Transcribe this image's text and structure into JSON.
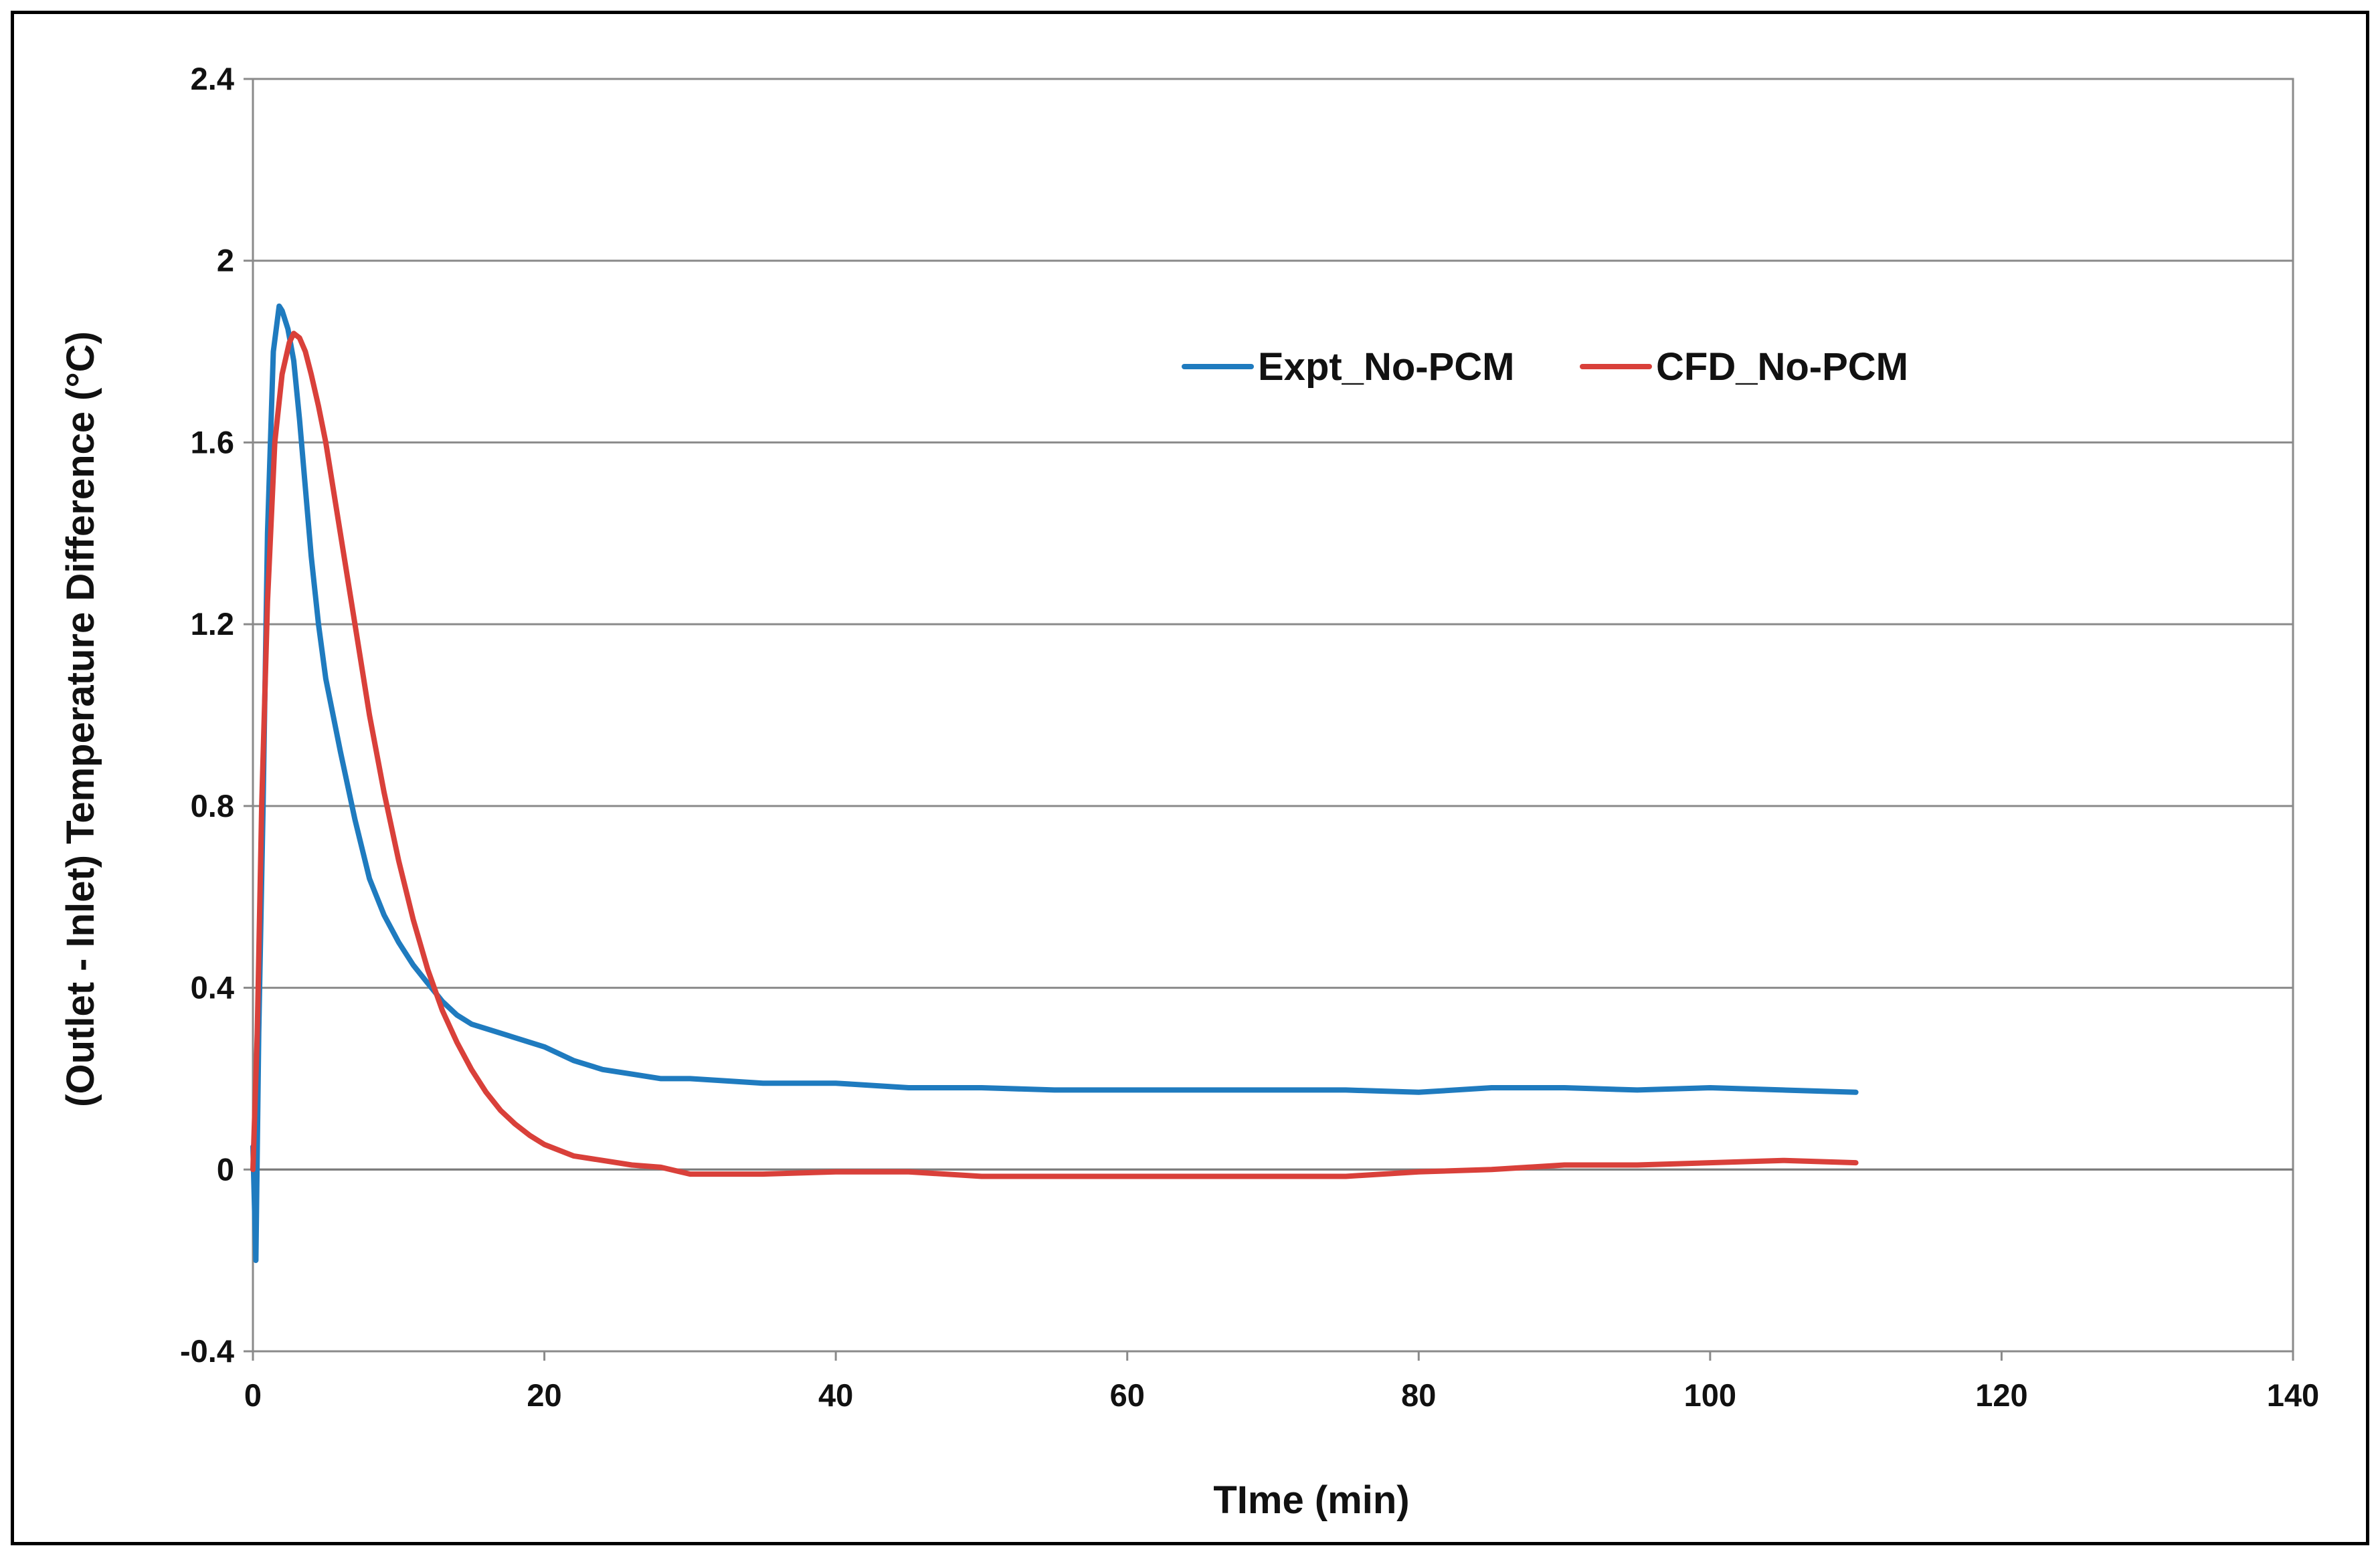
{
  "chart_data": {
    "type": "line",
    "title": "",
    "xlabel": "TIme (min)",
    "ylabel": "(Outlet - Inlet) Temperature Difference (°C)",
    "xlim": [
      0,
      140
    ],
    "ylim": [
      -0.4,
      2.4
    ],
    "x_ticks": [
      0,
      20,
      40,
      60,
      80,
      100,
      120,
      140
    ],
    "y_ticks": [
      -0.4,
      0,
      0.4,
      0.8,
      1.2,
      1.6,
      2,
      2.4
    ],
    "x_tick_labels": [
      "0",
      "20",
      "40",
      "60",
      "80",
      "100",
      "120",
      "140"
    ],
    "y_tick_labels": [
      "-0.4",
      "0",
      "0.4",
      "0.8",
      "1.2",
      "1.6",
      "2",
      "2.4"
    ],
    "grid": "horizontal",
    "legend_position": "top-right",
    "series": [
      {
        "name": "Expt_No-PCM",
        "color": "#1f7bbf",
        "x": [
          0,
          0.2,
          0.4,
          0.7,
          1.0,
          1.4,
          1.8,
          2.0,
          2.4,
          2.8,
          3.2,
          3.6,
          4.0,
          4.5,
          5.0,
          5.5,
          6.0,
          7.0,
          8.0,
          9.0,
          10.0,
          11.0,
          12.0,
          13.0,
          14.0,
          15.0,
          16.0,
          18.0,
          20.0,
          22.0,
          24.0,
          26.0,
          28.0,
          30.0,
          35.0,
          40.0,
          45.0,
          50.0,
          55.0,
          60.0,
          65.0,
          70.0,
          75.0,
          80.0,
          85.0,
          90.0,
          95.0,
          100.0,
          105.0,
          110.0
        ],
        "y": [
          0.05,
          -0.2,
          0.3,
          0.8,
          1.4,
          1.8,
          1.9,
          1.89,
          1.85,
          1.78,
          1.65,
          1.5,
          1.35,
          1.2,
          1.08,
          1.0,
          0.92,
          0.77,
          0.64,
          0.56,
          0.5,
          0.45,
          0.41,
          0.37,
          0.34,
          0.32,
          0.31,
          0.29,
          0.27,
          0.24,
          0.22,
          0.21,
          0.2,
          0.2,
          0.19,
          0.19,
          0.18,
          0.18,
          0.175,
          0.175,
          0.175,
          0.175,
          0.175,
          0.17,
          0.18,
          0.18,
          0.175,
          0.18,
          0.175,
          0.17
        ]
      },
      {
        "name": "CFD_No-PCM",
        "color": "#d9403a",
        "x": [
          0,
          0.3,
          0.6,
          1.0,
          1.5,
          2.0,
          2.5,
          2.8,
          3.2,
          3.6,
          4.0,
          4.5,
          5.0,
          5.5,
          6.0,
          7.0,
          8.0,
          9.0,
          10.0,
          11.0,
          12.0,
          13.0,
          14.0,
          15.0,
          16.0,
          17.0,
          18.0,
          19.0,
          20.0,
          22.0,
          24.0,
          26.0,
          28.0,
          30.0,
          35.0,
          40.0,
          45.0,
          50.0,
          55.0,
          60.0,
          65.0,
          70.0,
          75.0,
          80.0,
          85.0,
          90.0,
          95.0,
          100.0,
          105.0,
          110.0
        ],
        "y": [
          0.0,
          0.3,
          0.8,
          1.25,
          1.6,
          1.75,
          1.82,
          1.84,
          1.83,
          1.8,
          1.75,
          1.68,
          1.6,
          1.5,
          1.4,
          1.2,
          1.0,
          0.83,
          0.68,
          0.55,
          0.44,
          0.35,
          0.28,
          0.22,
          0.17,
          0.13,
          0.1,
          0.075,
          0.055,
          0.03,
          0.02,
          0.01,
          0.005,
          -0.01,
          -0.01,
          -0.005,
          -0.005,
          -0.015,
          -0.015,
          -0.015,
          -0.015,
          -0.015,
          -0.015,
          -0.005,
          0.0,
          0.01,
          0.01,
          0.015,
          0.02,
          0.015
        ]
      }
    ]
  }
}
